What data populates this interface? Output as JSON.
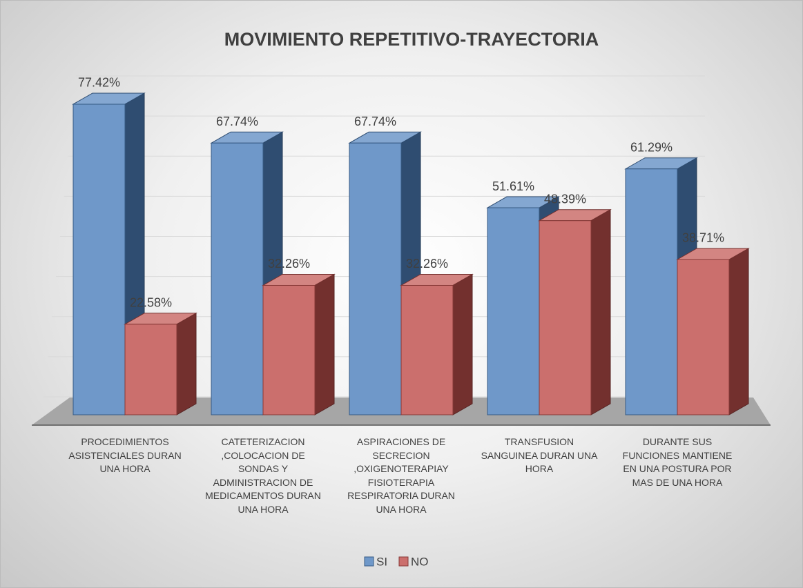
{
  "chart_data": {
    "type": "bar3d",
    "title": "MOVIMIENTO REPETITIVO-TRAYECTORIA",
    "categories": [
      "PROCEDIMIENTOS ASISTENCIALES DURAN UNA HORA",
      "CATETERIZACION ,COLOCACION DE SONDAS Y ADMINISTRACION DE MEDICAMENTOS DURAN UNA HORA",
      "ASPIRACIONES DE SECRECION ,OXIGENOTERAPIAY FISIOTERAPIA RESPIRATORIA  DURAN UNA HORA",
      "TRANSFUSION SANGUINEA DURAN UNA HORA",
      "DURANTE SUS FUNCIONES MANTIENE EN UNA POSTURA POR MAS DE UNA HORA"
    ],
    "series": [
      {
        "name": "SI",
        "color": "#4f81bd",
        "values": [
          77.42,
          67.74,
          67.74,
          51.61,
          61.29
        ],
        "value_labels": [
          "77.42%",
          "67.74%",
          "67.74%",
          "51.61%",
          "61.29%"
        ]
      },
      {
        "name": "NO",
        "color": "#c0504d",
        "values": [
          22.58,
          32.26,
          32.26,
          48.39,
          38.71
        ],
        "value_labels": [
          "22.58%",
          "32.26%",
          "32.26%",
          "48.39%",
          "38.71%"
        ]
      }
    ],
    "ylim": [
      0,
      80
    ],
    "yticks": [
      0,
      10,
      20,
      30,
      40,
      50,
      60,
      70,
      80
    ],
    "grid": true,
    "legend": "bottom"
  }
}
